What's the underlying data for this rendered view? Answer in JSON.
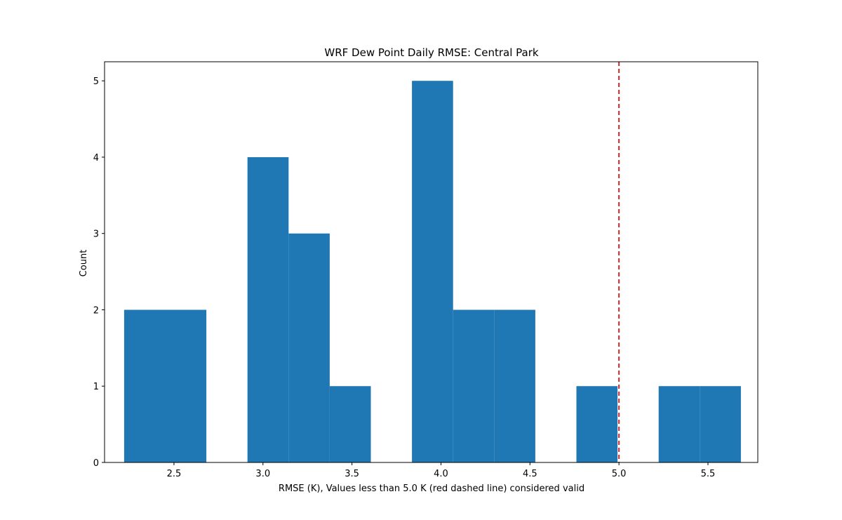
{
  "chart_data": {
    "type": "bar",
    "title": "WRF Dew Point Daily RMSE: Central Park",
    "xlabel": "RMSE (K), Values less than 5.0 K (red dashed line) considered valid",
    "ylabel": "Count",
    "xlim": [
      2.11,
      5.78
    ],
    "ylim": [
      0,
      5.25
    ],
    "xticks": [
      2.5,
      3.0,
      3.5,
      4.0,
      4.5,
      5.0,
      5.5
    ],
    "xtick_labels": [
      "2.5",
      "3.0",
      "3.5",
      "4.0",
      "4.5",
      "5.0",
      "5.5"
    ],
    "yticks": [
      0,
      1,
      2,
      3,
      4,
      5
    ],
    "ytick_labels": [
      "0",
      "1",
      "2",
      "3",
      "4",
      "5"
    ],
    "bin_edges": [
      2.22,
      2.451,
      2.682,
      2.913,
      3.144,
      3.375,
      3.606,
      3.837,
      4.068,
      4.299,
      4.53,
      4.761,
      4.992,
      5.223,
      5.454,
      5.685
    ],
    "counts": [
      2,
      2,
      0,
      4,
      3,
      1,
      0,
      5,
      2,
      2,
      0,
      1,
      0,
      1,
      1
    ],
    "bar_color": "#1f77b4",
    "threshold": {
      "value": 5.0,
      "color": "#d62728",
      "style": "dashed"
    },
    "grid": false,
    "legend": "none"
  }
}
